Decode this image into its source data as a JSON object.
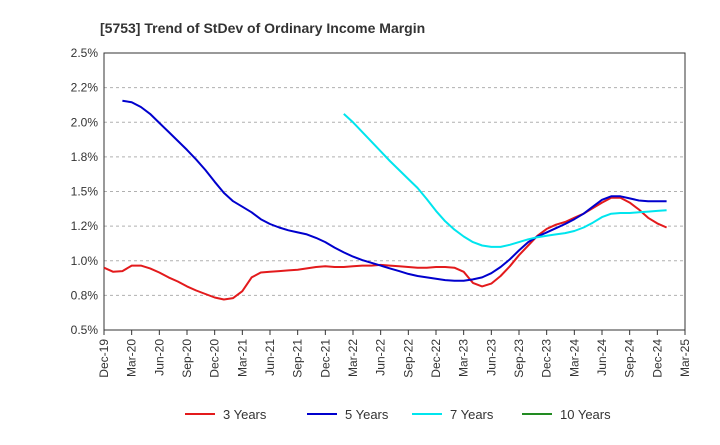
{
  "chart_data": {
    "type": "line",
    "title": "[5753]  Trend of StDev of Ordinary Income Margin",
    "xlabel": "",
    "ylabel": "",
    "x_ticks": [
      "Dec-19",
      "Mar-20",
      "Jun-20",
      "Sep-20",
      "Dec-20",
      "Mar-21",
      "Jun-21",
      "Sep-21",
      "Dec-21",
      "Mar-22",
      "Jun-22",
      "Sep-22",
      "Dec-22",
      "Mar-23",
      "Jun-23",
      "Sep-23",
      "Dec-23",
      "Mar-24",
      "Jun-24",
      "Sep-24",
      "Dec-24",
      "Mar-25"
    ],
    "y_ticks": [
      "0.5%",
      "0.8%",
      "1.0%",
      "1.2%",
      "1.5%",
      "1.8%",
      "2.0%",
      "2.2%",
      "2.5%"
    ],
    "y_tick_values": [
      0.5,
      0.75,
      1.0,
      1.25,
      1.5,
      1.75,
      2.0,
      2.25,
      2.5
    ],
    "ylim": [
      0.5,
      2.5
    ],
    "grid": "horizontal dashed",
    "legend_position": "bottom",
    "series": [
      {
        "name": "3 Years",
        "color": "#e31a1c",
        "points": [
          [
            "Dec-19",
            0.95
          ],
          [
            "Jan-20",
            0.92
          ],
          [
            "Feb-20",
            0.925
          ],
          [
            "Mar-20",
            0.965
          ],
          [
            "Apr-20",
            0.965
          ],
          [
            "May-20",
            0.945
          ],
          [
            "Jun-20",
            0.915
          ],
          [
            "Jul-20",
            0.88
          ],
          [
            "Aug-20",
            0.85
          ],
          [
            "Sep-20",
            0.815
          ],
          [
            "Oct-20",
            0.785
          ],
          [
            "Nov-20",
            0.76
          ],
          [
            "Dec-20",
            0.735
          ],
          [
            "Jan-21",
            0.72
          ],
          [
            "Feb-21",
            0.73
          ],
          [
            "Mar-21",
            0.78
          ],
          [
            "Apr-21",
            0.88
          ],
          [
            "May-21",
            0.915
          ],
          [
            "Jun-21",
            0.92
          ],
          [
            "Jul-21",
            0.925
          ],
          [
            "Aug-21",
            0.93
          ],
          [
            "Sep-21",
            0.935
          ],
          [
            "Oct-21",
            0.945
          ],
          [
            "Nov-21",
            0.955
          ],
          [
            "Dec-21",
            0.96
          ],
          [
            "Jan-22",
            0.955
          ],
          [
            "Feb-22",
            0.955
          ],
          [
            "Mar-22",
            0.96
          ],
          [
            "Apr-22",
            0.965
          ],
          [
            "May-22",
            0.965
          ],
          [
            "Jun-22",
            0.97
          ],
          [
            "Jul-22",
            0.965
          ],
          [
            "Aug-22",
            0.96
          ],
          [
            "Sep-22",
            0.955
          ],
          [
            "Oct-22",
            0.95
          ],
          [
            "Nov-22",
            0.95
          ],
          [
            "Dec-22",
            0.955
          ],
          [
            "Jan-23",
            0.955
          ],
          [
            "Feb-23",
            0.95
          ],
          [
            "Mar-23",
            0.92
          ],
          [
            "Apr-23",
            0.84
          ],
          [
            "May-23",
            0.815
          ],
          [
            "Jun-23",
            0.835
          ],
          [
            "Jul-23",
            0.89
          ],
          [
            "Aug-23",
            0.96
          ],
          [
            "Sep-23",
            1.04
          ],
          [
            "Oct-23",
            1.11
          ],
          [
            "Nov-23",
            1.18
          ],
          [
            "Dec-23",
            1.23
          ],
          [
            "Jan-24",
            1.26
          ],
          [
            "Feb-24",
            1.28
          ],
          [
            "Mar-24",
            1.31
          ],
          [
            "Apr-24",
            1.34
          ],
          [
            "May-24",
            1.38
          ],
          [
            "Jun-24",
            1.42
          ],
          [
            "Jul-24",
            1.455
          ],
          [
            "Aug-24",
            1.455
          ],
          [
            "Sep-24",
            1.42
          ],
          [
            "Oct-24",
            1.37
          ],
          [
            "Nov-24",
            1.31
          ],
          [
            "Dec-24",
            1.27
          ],
          [
            "Jan-25",
            1.24
          ]
        ]
      },
      {
        "name": "5 Years",
        "color": "#0000cd",
        "points": [
          [
            "Feb-20",
            2.155
          ],
          [
            "Mar-20",
            2.145
          ],
          [
            "Apr-20",
            2.11
          ],
          [
            "May-20",
            2.06
          ],
          [
            "Jun-20",
            1.995
          ],
          [
            "Jul-20",
            1.93
          ],
          [
            "Aug-20",
            1.865
          ],
          [
            "Sep-20",
            1.8
          ],
          [
            "Oct-20",
            1.73
          ],
          [
            "Nov-20",
            1.655
          ],
          [
            "Dec-20",
            1.57
          ],
          [
            "Jan-21",
            1.49
          ],
          [
            "Feb-21",
            1.43
          ],
          [
            "Mar-21",
            1.39
          ],
          [
            "Apr-21",
            1.35
          ],
          [
            "May-21",
            1.3
          ],
          [
            "Jun-21",
            1.265
          ],
          [
            "Jul-21",
            1.24
          ],
          [
            "Aug-21",
            1.22
          ],
          [
            "Sep-21",
            1.205
          ],
          [
            "Oct-21",
            1.19
          ],
          [
            "Nov-21",
            1.165
          ],
          [
            "Dec-21",
            1.135
          ],
          [
            "Jan-22",
            1.095
          ],
          [
            "Feb-22",
            1.06
          ],
          [
            "Mar-22",
            1.03
          ],
          [
            "Apr-22",
            1.005
          ],
          [
            "May-22",
            0.985
          ],
          [
            "Jun-22",
            0.965
          ],
          [
            "Jul-22",
            0.945
          ],
          [
            "Aug-22",
            0.925
          ],
          [
            "Sep-22",
            0.905
          ],
          [
            "Oct-22",
            0.89
          ],
          [
            "Nov-22",
            0.88
          ],
          [
            "Dec-22",
            0.87
          ],
          [
            "Jan-23",
            0.86
          ],
          [
            "Feb-23",
            0.855
          ],
          [
            "Mar-23",
            0.855
          ],
          [
            "Apr-23",
            0.865
          ],
          [
            "May-23",
            0.88
          ],
          [
            "Jun-23",
            0.91
          ],
          [
            "Jul-23",
            0.955
          ],
          [
            "Aug-23",
            1.01
          ],
          [
            "Sep-23",
            1.075
          ],
          [
            "Oct-23",
            1.135
          ],
          [
            "Nov-23",
            1.175
          ],
          [
            "Dec-23",
            1.205
          ],
          [
            "Jan-24",
            1.235
          ],
          [
            "Feb-24",
            1.265
          ],
          [
            "Mar-24",
            1.3
          ],
          [
            "Apr-24",
            1.34
          ],
          [
            "May-24",
            1.39
          ],
          [
            "Jun-24",
            1.44
          ],
          [
            "Jul-24",
            1.465
          ],
          [
            "Aug-24",
            1.465
          ],
          [
            "Sep-24",
            1.45
          ],
          [
            "Oct-24",
            1.435
          ],
          [
            "Nov-24",
            1.43
          ],
          [
            "Dec-24",
            1.43
          ],
          [
            "Jan-25",
            1.43
          ]
        ]
      },
      {
        "name": "7 Years",
        "color": "#00e5ee",
        "points": [
          [
            "Feb-22",
            2.06
          ],
          [
            "Mar-22",
            2.0
          ],
          [
            "Apr-22",
            1.93
          ],
          [
            "May-22",
            1.86
          ],
          [
            "Jun-22",
            1.79
          ],
          [
            "Jul-22",
            1.72
          ],
          [
            "Aug-22",
            1.655
          ],
          [
            "Sep-22",
            1.59
          ],
          [
            "Oct-22",
            1.525
          ],
          [
            "Nov-22",
            1.445
          ],
          [
            "Dec-22",
            1.36
          ],
          [
            "Jan-23",
            1.285
          ],
          [
            "Feb-23",
            1.225
          ],
          [
            "Mar-23",
            1.175
          ],
          [
            "Apr-23",
            1.135
          ],
          [
            "May-23",
            1.11
          ],
          [
            "Jun-23",
            1.1
          ],
          [
            "Jul-23",
            1.1
          ],
          [
            "Aug-23",
            1.115
          ],
          [
            "Sep-23",
            1.135
          ],
          [
            "Oct-23",
            1.155
          ],
          [
            "Nov-23",
            1.17
          ],
          [
            "Dec-23",
            1.18
          ],
          [
            "Jan-24",
            1.19
          ],
          [
            "Feb-24",
            1.2
          ],
          [
            "Mar-24",
            1.215
          ],
          [
            "Apr-24",
            1.24
          ],
          [
            "May-24",
            1.275
          ],
          [
            "Jun-24",
            1.315
          ],
          [
            "Jul-24",
            1.34
          ],
          [
            "Aug-24",
            1.345
          ],
          [
            "Sep-24",
            1.345
          ],
          [
            "Oct-24",
            1.35
          ],
          [
            "Nov-24",
            1.355
          ],
          [
            "Dec-24",
            1.36
          ],
          [
            "Jan-25",
            1.365
          ]
        ]
      },
      {
        "name": "10 Years",
        "color": "#228b22",
        "points": []
      }
    ]
  }
}
